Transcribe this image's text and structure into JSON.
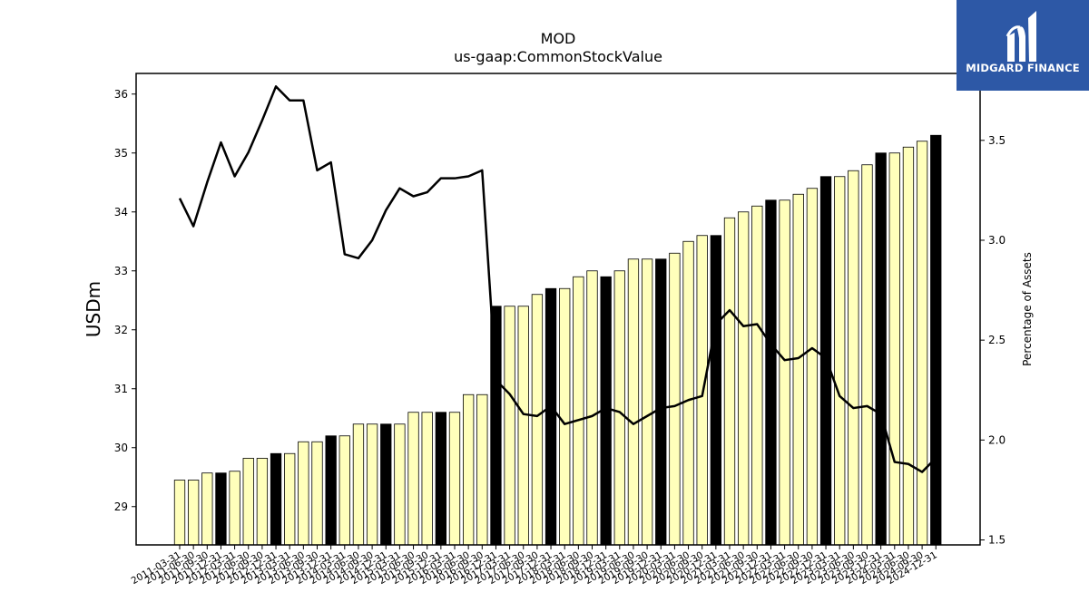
{
  "chart_data": {
    "type": "bar+line",
    "title": "MOD",
    "subtitle": "us-gaap:CommonStockValue",
    "ylabel_left": "USDm",
    "ylabel_right": "Percentage of Assets",
    "ylim_left": [
      28.35,
      36.35
    ],
    "ylim_right": [
      1.475,
      3.835
    ],
    "yticks_left": [
      "29",
      "30",
      "31",
      "32",
      "33",
      "34",
      "35",
      "36"
    ],
    "yticks_right": [
      "1.5",
      "2.0",
      "2.5",
      "3.0",
      "3.5"
    ],
    "categories": [
      "2011-03-31",
      "2011-06-30",
      "2011-09-30",
      "2011-12-31",
      "2012-03-31",
      "2012-06-30",
      "2012-09-30",
      "2012-12-31",
      "2013-03-31",
      "2013-06-30",
      "2013-09-30",
      "2013-12-31",
      "2014-03-31",
      "2014-06-30",
      "2014-09-30",
      "2014-12-31",
      "2015-03-31",
      "2015-06-30",
      "2015-09-30",
      "2015-12-31",
      "2016-03-31",
      "2016-06-30",
      "2016-09-30",
      "2016-12-31",
      "2017-03-31",
      "2017-06-30",
      "2017-09-30",
      "2017-12-31",
      "2018-03-31",
      "2018-06-30",
      "2018-09-30",
      "2018-12-31",
      "2019-03-31",
      "2019-06-30",
      "2019-09-30",
      "2019-12-31",
      "2020-03-31",
      "2020-06-30",
      "2020-09-30",
      "2020-12-31",
      "2021-03-31",
      "2021-06-30",
      "2021-09-30",
      "2021-12-31",
      "2022-03-31",
      "2022-06-30",
      "2022-09-30",
      "2022-12-31",
      "2023-03-31",
      "2023-06-30",
      "2023-09-30",
      "2023-12-31",
      "2024-03-31",
      "2024-06-30",
      "2024-09-30",
      "2024-12-31"
    ],
    "series": [
      {
        "name": "CommonStockValue",
        "kind": "bar",
        "values": [
          29.45,
          29.45,
          29.57,
          29.57,
          29.6,
          29.82,
          29.82,
          29.9,
          29.9,
          30.1,
          30.1,
          30.2,
          30.2,
          30.4,
          30.4,
          30.4,
          30.4,
          30.6,
          30.6,
          30.6,
          30.6,
          30.9,
          30.9,
          32.4,
          32.4,
          32.4,
          32.6,
          32.7,
          32.7,
          32.9,
          33.0,
          32.9,
          33.0,
          33.2,
          33.2,
          33.2,
          33.3,
          33.5,
          33.6,
          33.6,
          33.9,
          34.0,
          34.1,
          34.2,
          34.2,
          34.3,
          34.4,
          34.6,
          34.6,
          34.7,
          34.8,
          35.0,
          35.0,
          35.1,
          35.2,
          35.3
        ],
        "highlight": [
          false,
          false,
          false,
          true,
          false,
          false,
          false,
          true,
          false,
          false,
          false,
          true,
          false,
          false,
          false,
          true,
          false,
          false,
          false,
          true,
          false,
          false,
          false,
          true,
          false,
          false,
          false,
          true,
          false,
          false,
          false,
          true,
          false,
          false,
          false,
          true,
          false,
          false,
          false,
          true,
          false,
          false,
          false,
          true,
          false,
          false,
          false,
          true,
          false,
          false,
          false,
          true,
          false,
          false,
          false,
          true
        ]
      },
      {
        "name": "Percentage of Assets",
        "kind": "line",
        "values": [
          3.21,
          3.07,
          3.29,
          3.49,
          3.32,
          3.44,
          3.6,
          3.77,
          3.7,
          3.7,
          3.35,
          3.39,
          2.93,
          2.91,
          3.0,
          3.15,
          3.26,
          3.22,
          3.24,
          3.31,
          3.31,
          3.32,
          3.35,
          2.3,
          2.23,
          2.13,
          2.12,
          2.17,
          2.08,
          2.1,
          2.12,
          2.16,
          2.14,
          2.08,
          2.12,
          2.16,
          2.17,
          2.2,
          2.22,
          2.58,
          2.65,
          2.57,
          2.58,
          2.48,
          2.4,
          2.41,
          2.46,
          2.41,
          2.22,
          2.16,
          2.17,
          2.13,
          1.89,
          1.88,
          1.84,
          1.91
        ]
      }
    ],
    "colors": {
      "bar": "#ffffbb",
      "bar_highlight": "#000000",
      "bar_edge": "#000000",
      "line": "#000000"
    },
    "grid": false
  },
  "logo": {
    "text": "MIDGARD FINANCE",
    "background": "#2d58a6"
  }
}
